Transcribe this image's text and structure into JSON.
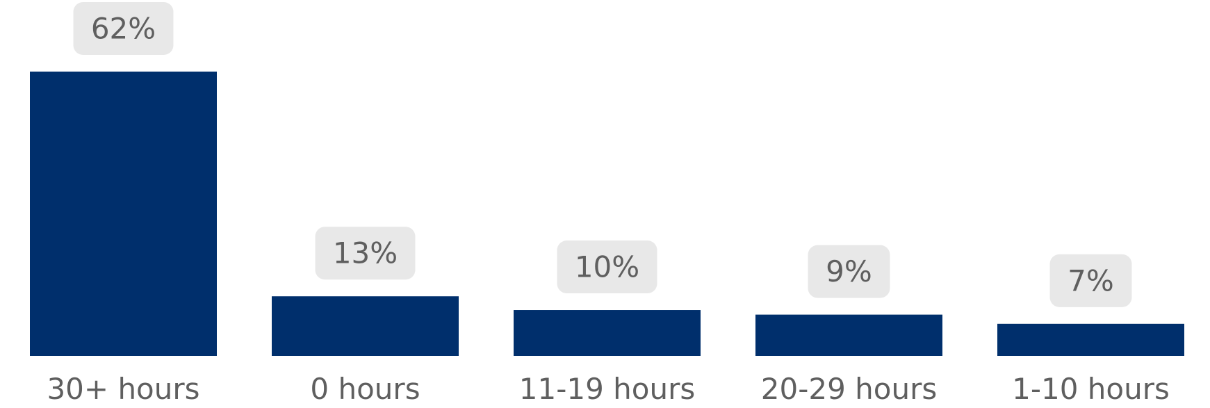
{
  "chart_data": {
    "type": "bar",
    "title": "",
    "xlabel": "",
    "ylabel": "",
    "categories": [
      "30+ hours",
      "0 hours",
      "11-19 hours",
      "20-29 hours",
      "1-10 hours"
    ],
    "values": [
      62,
      13,
      10,
      9,
      7
    ],
    "data_labels": [
      "62%",
      "13%",
      "10%",
      "9%",
      "7%"
    ],
    "unit": "%",
    "ylim": [
      0,
      62
    ],
    "grid": false,
    "legend": "none",
    "colors": {
      "bar": "#002f6c",
      "label_box": "#e8e8e8",
      "text": "#5f5f5f"
    }
  }
}
